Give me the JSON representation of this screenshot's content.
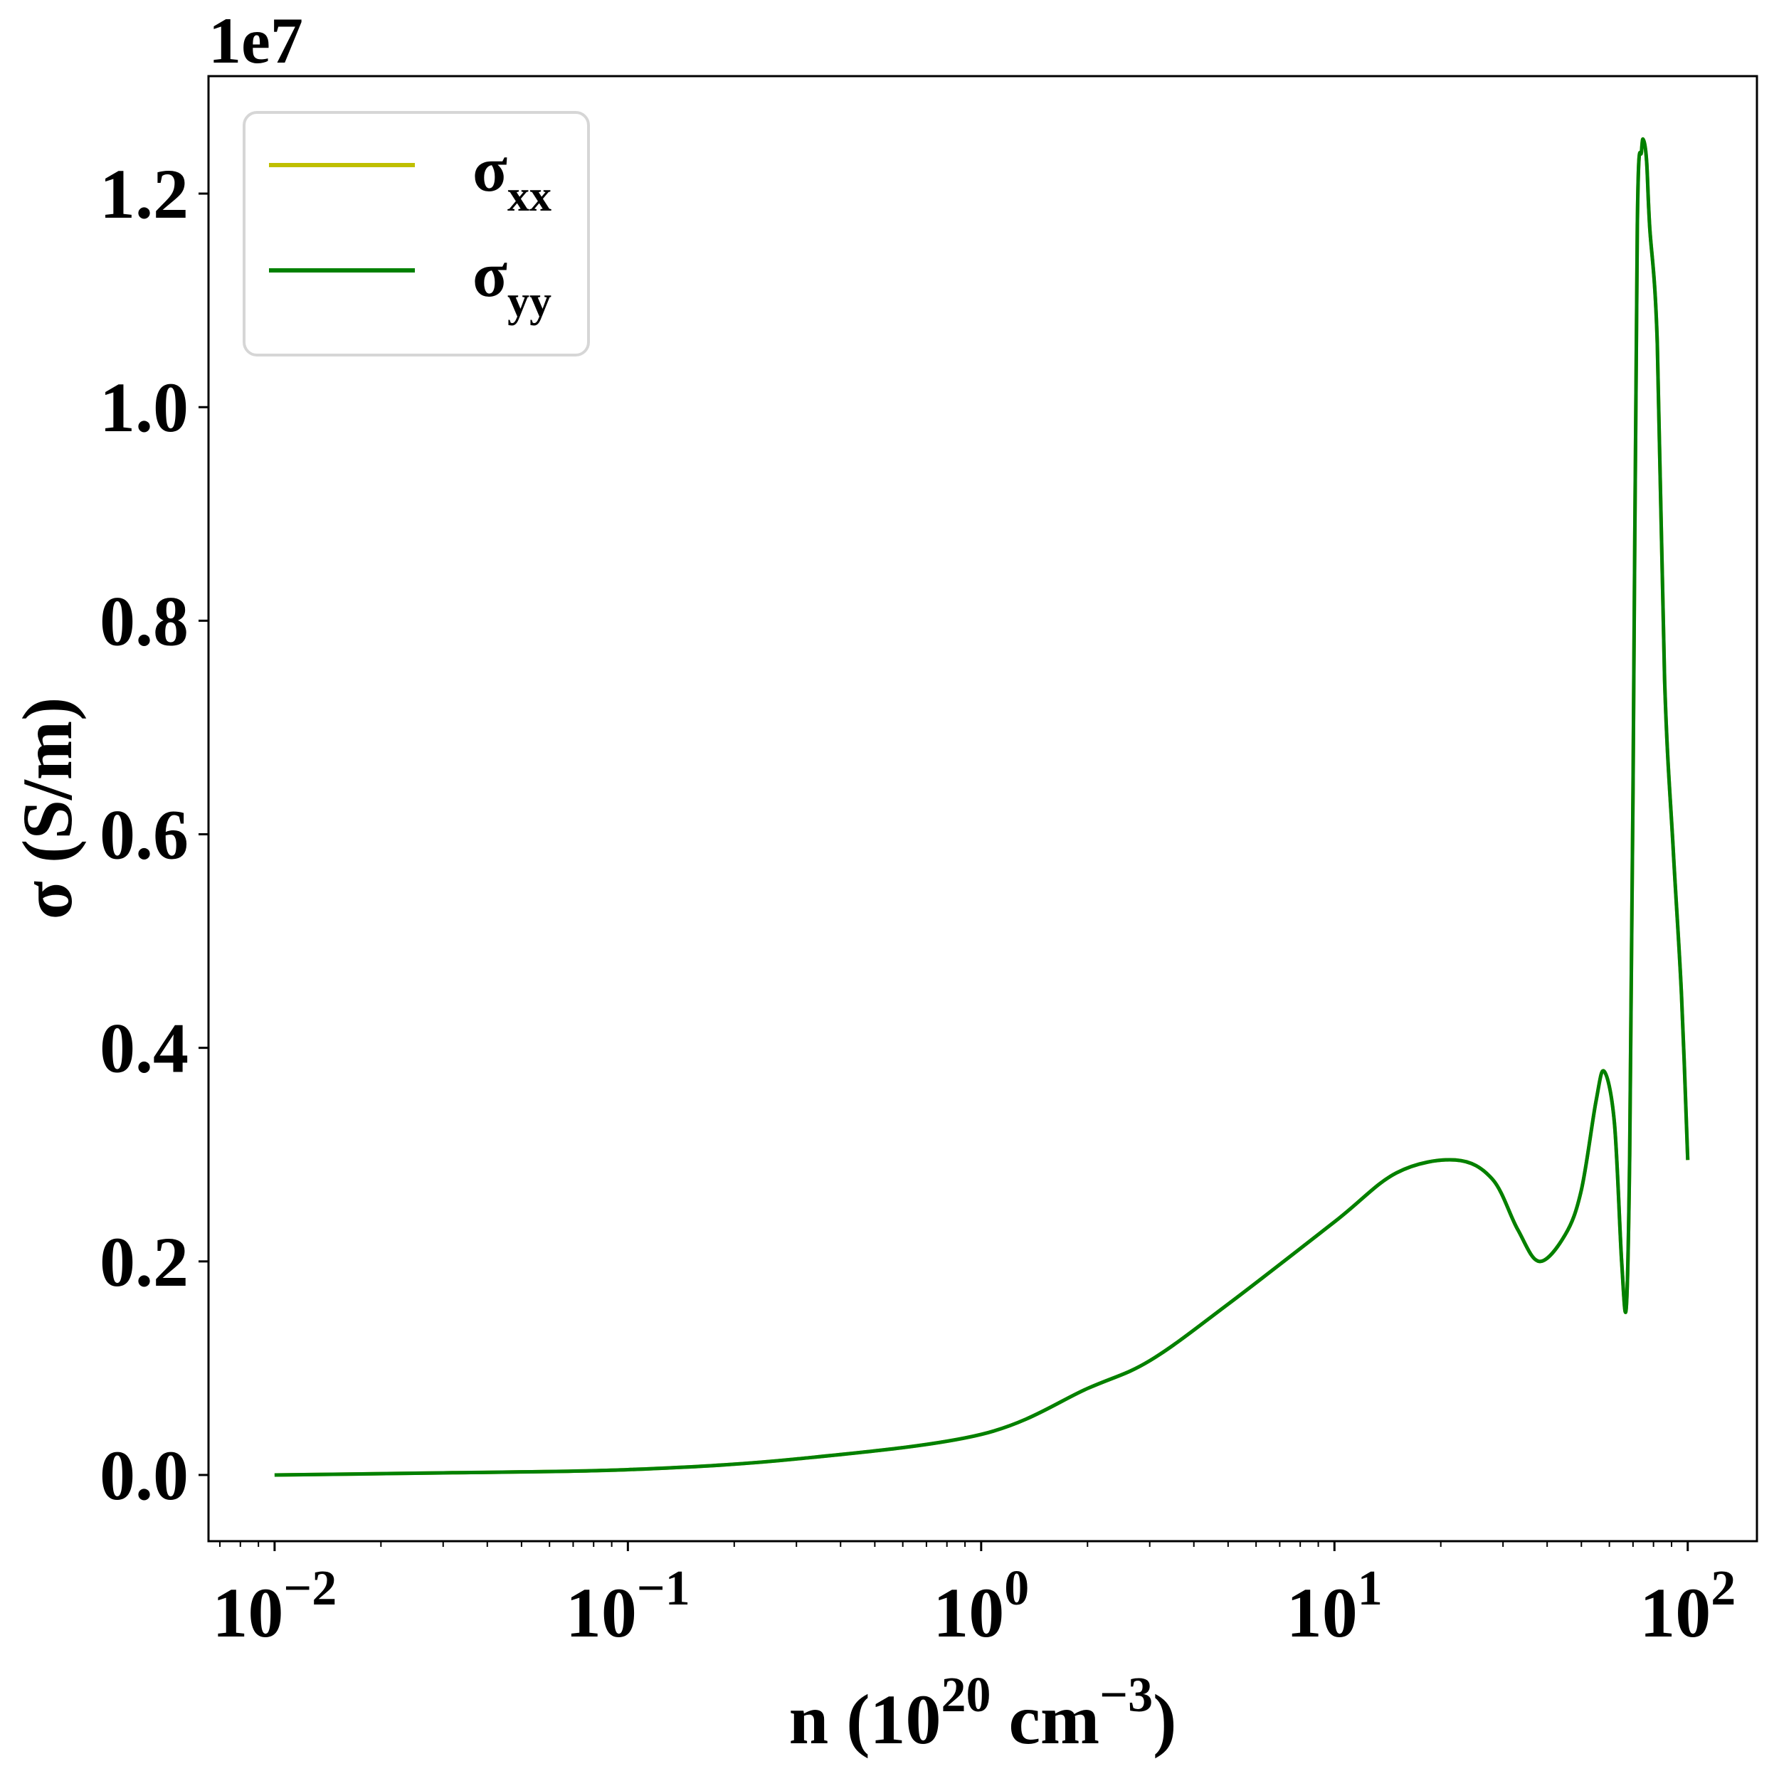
{
  "chart_data": {
    "type": "line",
    "xlabel": "n (10^20 cm^-3)",
    "xlabel_parts": {
      "pre": "n (10",
      "sup1": "20",
      "mid": " cm",
      "sup2": "−3",
      "post": ")"
    },
    "ylabel": "σ (S/m)",
    "y_offset_text": "1e7",
    "xscale": "log",
    "xlim": [
      0.0065,
      157
    ],
    "ylim": [
      -0.062,
      1.31
    ],
    "x_ticks": [
      {
        "base": "10",
        "exp": "−2",
        "value": 0.01
      },
      {
        "base": "10",
        "exp": "−1",
        "value": 0.1
      },
      {
        "base": "10",
        "exp": "0",
        "value": 1
      },
      {
        "base": "10",
        "exp": "1",
        "value": 10
      },
      {
        "base": "10",
        "exp": "2",
        "value": 100
      }
    ],
    "y_ticks": [
      "0.0",
      "0.2",
      "0.4",
      "0.6",
      "0.8",
      "1.0",
      "1.2"
    ],
    "grid": false,
    "legend_placement": "top-left",
    "x": [
      0.01,
      0.03,
      0.1,
      0.3,
      1,
      2,
      3,
      5,
      10,
      15,
      22,
      28,
      33,
      38,
      45,
      50,
      55,
      58,
      62,
      65,
      67,
      68.5,
      70,
      72,
      74,
      75,
      76.5,
      78,
      82,
      86,
      91,
      96,
      100
    ],
    "series": [
      {
        "name": "σxx",
        "name_main": "σ",
        "name_sub": "xx",
        "color": "#bfbf00",
        "values": [
          0.0,
          0.002,
          0.005,
          0.015,
          0.038,
          0.081,
          0.107,
          0.16,
          0.237,
          0.283,
          0.295,
          0.277,
          0.23,
          0.2,
          0.225,
          0.267,
          0.35,
          0.378,
          0.33,
          0.2,
          0.157,
          0.3,
          0.64,
          1.17,
          1.24,
          1.25,
          1.23,
          1.17,
          1.06,
          0.745,
          0.585,
          0.45,
          0.295
        ]
      },
      {
        "name": "σyy",
        "name_main": "σ",
        "name_sub": "yy",
        "color": "#008000",
        "values": [
          0.0,
          0.002,
          0.005,
          0.015,
          0.038,
          0.081,
          0.107,
          0.16,
          0.237,
          0.283,
          0.295,
          0.277,
          0.23,
          0.2,
          0.225,
          0.267,
          0.35,
          0.378,
          0.33,
          0.2,
          0.157,
          0.3,
          0.64,
          1.17,
          1.24,
          1.25,
          1.23,
          1.17,
          1.06,
          0.745,
          0.585,
          0.45,
          0.295
        ]
      }
    ]
  }
}
